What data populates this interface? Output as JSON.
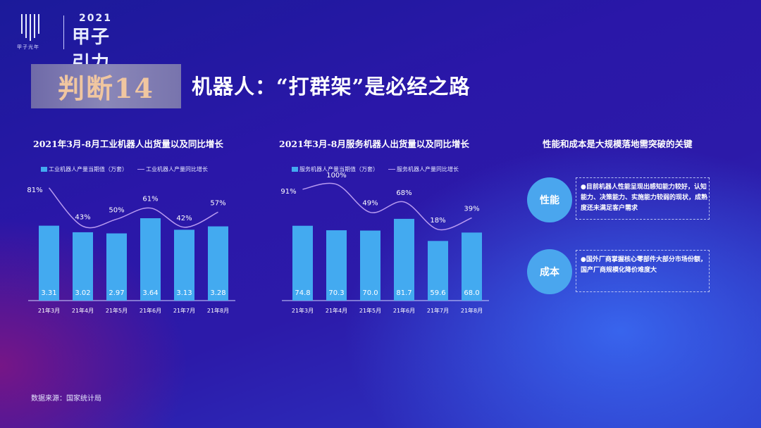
{
  "logo": {
    "brand": "甲子光年",
    "year": "2021",
    "title": "甲子引力"
  },
  "headline": {
    "tag": "判断14",
    "title": "机器人：“打群架”是必经之路"
  },
  "chart_data": [
    {
      "type": "bar",
      "title": "2021年3月-8月工业机器人出货量以及同比增长",
      "categories": [
        "21年3月",
        "21年4月",
        "21年5月",
        "21年6月",
        "21年7月",
        "21年8月"
      ],
      "series": [
        {
          "name": "工业机器人产量当期值（万套）",
          "type": "bar",
          "values": [
            3.31,
            3.02,
            2.97,
            3.64,
            3.13,
            3.28
          ],
          "labels": [
            "3.31",
            "3.02",
            "2.97",
            "3.64",
            "3.13",
            "3.28"
          ]
        },
        {
          "name": "工业机器人产量同比增长",
          "type": "line",
          "values": [
            81,
            43,
            50,
            61,
            42,
            57
          ],
          "labels": [
            "81%",
            "43%",
            "50%",
            "61%",
            "42%",
            "57%"
          ]
        }
      ],
      "bar_ylim": [
        0,
        4.2
      ],
      "line_ylim": [
        30,
        90
      ]
    },
    {
      "type": "bar",
      "title": "2021年3月-8月服务机器人出货量以及同比增长",
      "categories": [
        "21年3月",
        "21年4月",
        "21年5月",
        "21年6月",
        "21年7月",
        "21年8月"
      ],
      "series": [
        {
          "name": "服务机器人产量当期值（万套）",
          "type": "bar",
          "values": [
            74.8,
            70.3,
            70.0,
            81.7,
            59.6,
            68.0
          ],
          "labels": [
            "74.8",
            "70.3",
            "70.0",
            "81.7",
            "59.6",
            "68.0"
          ]
        },
        {
          "name": "服务机器人产量同比增长",
          "type": "line",
          "values": [
            91,
            100,
            49,
            68,
            18,
            39
          ],
          "labels": [
            "91%",
            "100%",
            "49%",
            "68%",
            "18%",
            "39%"
          ]
        }
      ],
      "bar_ylim": [
        0,
        95
      ],
      "line_ylim": [
        0,
        110
      ]
    }
  ],
  "right_panel": {
    "title": "性能和成本是大规模落地需突破的关键",
    "items": [
      {
        "label": "性能",
        "text": "●目前机器人性能呈现出感知能力较好，认知能力、决策能力、实施能力较弱的现状，成熟度还未满足客户需求"
      },
      {
        "label": "成本",
        "text": "●国外厂商掌握核心零部件大部分市场份额，国产厂商规模化降价难度大"
      }
    ]
  },
  "source": "数据来源：国家统计局",
  "colors": {
    "bar": "#43aaf0",
    "line": "#b79af0"
  }
}
